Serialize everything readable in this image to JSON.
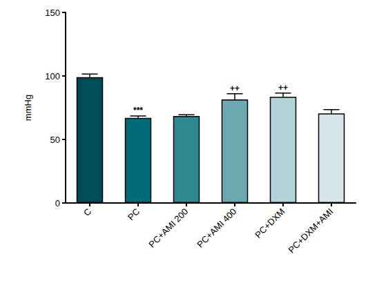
{
  "chart_data": {
    "type": "bar",
    "y_label": "mmHg",
    "categories": [
      "C",
      "PC",
      "PC+AMI 200",
      "PC+AMI 400",
      "PC+DXM",
      "PC+DXM+AMI"
    ],
    "values": [
      99,
      67,
      68.5,
      81.5,
      83.5,
      70.5
    ],
    "errors": [
      2.5,
      1.5,
      1,
      4.5,
      3,
      3
    ],
    "annotations": [
      null,
      "***",
      null,
      "++",
      "++",
      null
    ],
    "colors": [
      "#004d59",
      "#006b78",
      "#2f8890",
      "#6ca9b1",
      "#b3d3db",
      "#d7e6eb"
    ],
    "ylim": [
      0,
      150
    ],
    "yticks": [
      0,
      50,
      100,
      150
    ],
    "grid": false
  }
}
